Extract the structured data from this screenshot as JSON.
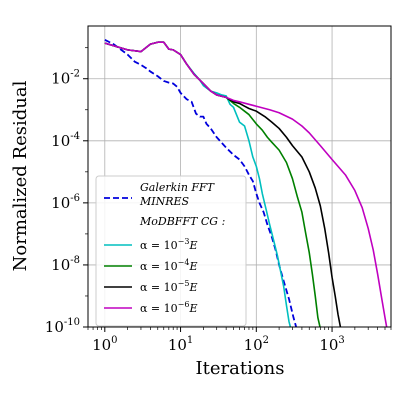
{
  "chart_data": {
    "type": "line",
    "xlabel": "Iterations",
    "ylabel": "Normalized Residual",
    "xscale": "log",
    "yscale": "log",
    "xlim": [
      0.6,
      6000
    ],
    "ylim": [
      1e-10,
      0.5
    ],
    "grid": true,
    "legend_position": "lower-left",
    "x_ticks": [
      {
        "value": 1,
        "base": "10",
        "exp": "0"
      },
      {
        "value": 10,
        "base": "10",
        "exp": "1"
      },
      {
        "value": 100,
        "base": "10",
        "exp": "2"
      },
      {
        "value": 1000,
        "base": "10",
        "exp": "3"
      }
    ],
    "y_ticks": [
      {
        "value": 0.01,
        "base": "10",
        "exp": "-2"
      },
      {
        "value": 0.0001,
        "base": "10",
        "exp": "-4"
      },
      {
        "value": 1e-06,
        "base": "10",
        "exp": "-6"
      },
      {
        "value": 1e-08,
        "base": "10",
        "exp": "-8"
      },
      {
        "value": 1e-10,
        "base": "10",
        "exp": "-10"
      }
    ],
    "legend_header": "MoDBFFT CG :",
    "series": [
      {
        "name": "Galerkin FFT MINRES",
        "legend_lines": [
          "Galerkin FFT",
          "MINRES"
        ],
        "color": "#0000dd",
        "dashed": true,
        "points": [
          [
            1,
            0.18
          ],
          [
            1.3,
            0.13
          ],
          [
            1.6,
            0.09
          ],
          [
            2,
            0.06
          ],
          [
            2.5,
            0.035
          ],
          [
            3,
            0.028
          ],
          [
            3.5,
            0.022
          ],
          [
            4,
            0.017
          ],
          [
            5,
            0.012
          ],
          [
            6,
            0.0085
          ],
          [
            7,
            0.0075
          ],
          [
            8,
            0.007
          ],
          [
            9,
            0.0055
          ],
          [
            10,
            0.0035
          ],
          [
            12,
            0.0022
          ],
          [
            14,
            0.0018
          ],
          [
            16,
            0.00075
          ],
          [
            18,
            0.0006
          ],
          [
            20,
            0.0006
          ],
          [
            22,
            0.00035
          ],
          [
            25,
            0.00025
          ],
          [
            30,
            0.00013
          ],
          [
            40,
            6e-05
          ],
          [
            50,
            3.5e-05
          ],
          [
            60,
            2.5e-05
          ],
          [
            70,
            1.5e-05
          ],
          [
            80,
            8e-06
          ],
          [
            90,
            5e-06
          ],
          [
            100,
            2e-06
          ],
          [
            110,
            1e-06
          ],
          [
            125,
            5e-07
          ],
          [
            140,
            2e-07
          ],
          [
            160,
            8e-08
          ],
          [
            180,
            3e-08
          ],
          [
            200,
            1e-08
          ],
          [
            230,
            3e-09
          ],
          [
            270,
            8e-10
          ],
          [
            310,
            2e-10
          ],
          [
            340,
            9e-11
          ]
        ]
      },
      {
        "name": "α=10^-3 E",
        "legend_prefix": "α = 10",
        "legend_exp": "−3",
        "legend_suffix": "E",
        "color": "#00bfbf",
        "dashed": false,
        "points": [
          [
            1,
            0.14
          ],
          [
            2,
            0.085
          ],
          [
            3,
            0.075
          ],
          [
            4,
            0.13
          ],
          [
            5,
            0.15
          ],
          [
            6,
            0.15
          ],
          [
            7,
            0.09
          ],
          [
            8,
            0.085
          ],
          [
            10,
            0.06
          ],
          [
            12,
            0.03
          ],
          [
            15,
            0.015
          ],
          [
            18,
            0.009
          ],
          [
            20,
            0.006
          ],
          [
            25,
            0.004
          ],
          [
            30,
            0.0035
          ],
          [
            35,
            0.003
          ],
          [
            40,
            0.0028
          ],
          [
            45,
            0.0015
          ],
          [
            50,
            0.0012
          ],
          [
            60,
            0.0004
          ],
          [
            70,
            0.0003
          ],
          [
            80,
            0.0001
          ],
          [
            90,
            3e-05
          ],
          [
            100,
            1.5e-05
          ],
          [
            110,
            6e-06
          ],
          [
            120,
            2e-06
          ],
          [
            135,
            6e-07
          ],
          [
            150,
            2e-07
          ],
          [
            170,
            6e-08
          ],
          [
            190,
            2e-08
          ],
          [
            210,
            6e-09
          ],
          [
            230,
            2e-09
          ],
          [
            250,
            5e-10
          ],
          [
            270,
            1.5e-10
          ],
          [
            285,
            9e-11
          ]
        ]
      },
      {
        "name": "α=10^-4 E",
        "legend_prefix": "α = 10",
        "legend_exp": "−4",
        "legend_suffix": "E",
        "color": "#008000",
        "dashed": false,
        "points": [
          [
            1,
            0.14
          ],
          [
            2,
            0.085
          ],
          [
            3,
            0.075
          ],
          [
            4,
            0.13
          ],
          [
            5,
            0.15
          ],
          [
            6,
            0.15
          ],
          [
            7,
            0.09
          ],
          [
            8,
            0.085
          ],
          [
            10,
            0.06
          ],
          [
            12,
            0.03
          ],
          [
            15,
            0.014
          ],
          [
            20,
            0.007
          ],
          [
            25,
            0.004
          ],
          [
            30,
            0.003
          ],
          [
            40,
            0.0025
          ],
          [
            50,
            0.0016
          ],
          [
            60,
            0.0012
          ],
          [
            70,
            0.0009
          ],
          [
            80,
            0.0007
          ],
          [
            100,
            0.00035
          ],
          [
            120,
            0.00022
          ],
          [
            140,
            0.00013
          ],
          [
            160,
            9e-05
          ],
          [
            200,
            5e-05
          ],
          [
            250,
            2e-05
          ],
          [
            300,
            6e-06
          ],
          [
            350,
            1.5e-06
          ],
          [
            400,
            5e-07
          ],
          [
            450,
            1e-07
          ],
          [
            500,
            2.5e-08
          ],
          [
            550,
            5e-09
          ],
          [
            600,
            1e-09
          ],
          [
            650,
            2e-10
          ],
          [
            700,
            9e-11
          ]
        ]
      },
      {
        "name": "α=10^-5 E",
        "legend_prefix": "α = 10",
        "legend_exp": "−5",
        "legend_suffix": "E",
        "color": "#000000",
        "dashed": false,
        "points": [
          [
            1,
            0.14
          ],
          [
            2,
            0.085
          ],
          [
            3,
            0.075
          ],
          [
            4,
            0.13
          ],
          [
            5,
            0.15
          ],
          [
            6,
            0.15
          ],
          [
            7,
            0.09
          ],
          [
            8,
            0.085
          ],
          [
            10,
            0.06
          ],
          [
            12,
            0.03
          ],
          [
            15,
            0.014
          ],
          [
            20,
            0.007
          ],
          [
            25,
            0.004
          ],
          [
            30,
            0.003
          ],
          [
            40,
            0.0025
          ],
          [
            50,
            0.0018
          ],
          [
            60,
            0.0016
          ],
          [
            70,
            0.0013
          ],
          [
            80,
            0.0011
          ],
          [
            100,
            0.0009
          ],
          [
            130,
            0.0006
          ],
          [
            160,
            0.0004
          ],
          [
            200,
            0.00025
          ],
          [
            250,
            0.00013
          ],
          [
            300,
            7e-05
          ],
          [
            400,
            3e-05
          ],
          [
            500,
            1e-05
          ],
          [
            600,
            3e-06
          ],
          [
            700,
            8e-07
          ],
          [
            800,
            1.5e-07
          ],
          [
            900,
            2.5e-08
          ],
          [
            1000,
            4e-09
          ],
          [
            1100,
            1e-09
          ],
          [
            1200,
            2.5e-10
          ],
          [
            1300,
            9e-11
          ]
        ]
      },
      {
        "name": "α=10^-6 E",
        "legend_prefix": "α = 10",
        "legend_exp": "−6",
        "legend_suffix": "E",
        "color": "#c000c0",
        "dashed": false,
        "points": [
          [
            1,
            0.14
          ],
          [
            2,
            0.085
          ],
          [
            3,
            0.075
          ],
          [
            4,
            0.13
          ],
          [
            5,
            0.15
          ],
          [
            6,
            0.15
          ],
          [
            7,
            0.09
          ],
          [
            8,
            0.085
          ],
          [
            10,
            0.06
          ],
          [
            12,
            0.03
          ],
          [
            15,
            0.014
          ],
          [
            20,
            0.007
          ],
          [
            25,
            0.004
          ],
          [
            30,
            0.003
          ],
          [
            40,
            0.0025
          ],
          [
            50,
            0.002
          ],
          [
            60,
            0.0018
          ],
          [
            80,
            0.0015
          ],
          [
            100,
            0.0013
          ],
          [
            150,
            0.001
          ],
          [
            200,
            0.0008
          ],
          [
            300,
            0.0005
          ],
          [
            400,
            0.0003
          ],
          [
            500,
            0.00018
          ],
          [
            700,
            7e-05
          ],
          [
            1000,
            2.5e-05
          ],
          [
            1500,
            8e-06
          ],
          [
            2000,
            2.5e-06
          ],
          [
            2500,
            7e-07
          ],
          [
            3000,
            1.5e-07
          ],
          [
            3500,
            3e-08
          ],
          [
            4000,
            5e-09
          ],
          [
            4500,
            9e-10
          ],
          [
            5000,
            2e-10
          ],
          [
            5300,
            9e-11
          ]
        ]
      }
    ]
  }
}
